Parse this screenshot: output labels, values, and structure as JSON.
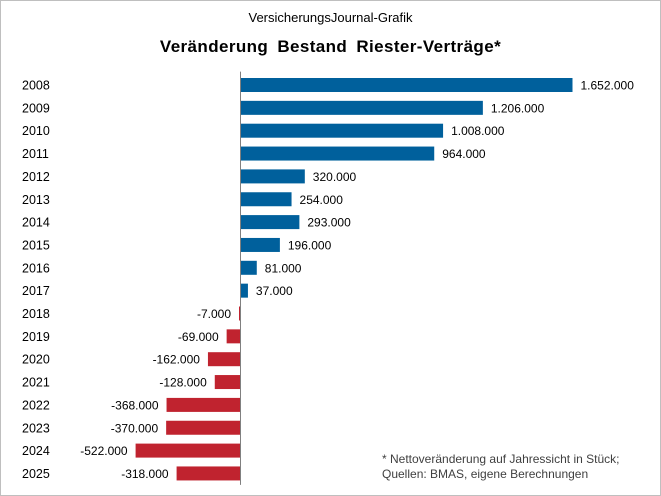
{
  "header": {
    "source": "VersicherungsJournal-Grafik"
  },
  "footnote": {
    "line1": "* Nettoveränderung  auf Jahressicht in Stück;",
    "line2": "Quellen: BMAS, eigene Berechnungen"
  },
  "colors": {
    "positive": "#00609c",
    "negative": "#c0232f",
    "axis": "#808080"
  },
  "chart_data": {
    "type": "bar",
    "orientation": "horizontal",
    "title": "Veränderung  Bestand  Riester-Verträge*",
    "categories": [
      "2008",
      "2009",
      "2010",
      "2011",
      "2012",
      "2013",
      "2014",
      "2015",
      "2016",
      "2017",
      "2018",
      "2019",
      "2020",
      "2021",
      "2022",
      "2023",
      "2024",
      "2025"
    ],
    "values": [
      1652000,
      1206000,
      1008000,
      964000,
      320000,
      254000,
      293000,
      196000,
      81000,
      37000,
      -7000,
      -69000,
      -162000,
      -128000,
      -368000,
      -370000,
      -522000,
      -318000
    ],
    "labels": [
      "1.652.000",
      "1.206.000",
      "1.008.000",
      "964.000",
      "320.000",
      "254.000",
      "293.000",
      "196.000",
      "81.000",
      "37.000",
      "-7.000",
      "-69.000",
      "-162.000",
      "-128.000",
      "-368.000",
      "-370.000",
      "-522.000",
      "-318.000"
    ],
    "xlabel": "",
    "ylabel": "",
    "grid": false,
    "legend": "none"
  }
}
